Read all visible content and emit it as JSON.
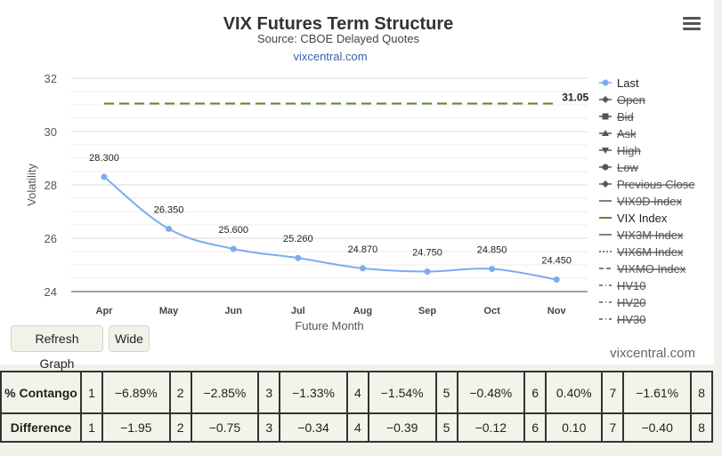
{
  "title": "VIX Futures Term Structure",
  "subtitle": "Source: CBOE Delayed Quotes",
  "link": "vixcentral.com",
  "brand": "vixcentral.com",
  "buttons": {
    "refresh": "Refresh Graph",
    "wide": "Wide"
  },
  "menu_icon": "hamburger-menu-icon",
  "colors": {
    "last": "#7cabf2",
    "vix_index": "#5a8a2a",
    "legend_inactive": "#555555"
  },
  "chart_data": {
    "type": "line",
    "xlabel": "Future Month",
    "ylabel": "Volatility",
    "ylim": [
      24,
      32
    ],
    "yticks": [
      24,
      26,
      28,
      30,
      32
    ],
    "categories": [
      "Apr",
      "May",
      "Jun",
      "Jul",
      "Aug",
      "Sep",
      "Oct",
      "Nov"
    ],
    "series": [
      {
        "name": "Last",
        "values": [
          28.3,
          26.35,
          25.6,
          25.26,
          24.87,
          24.75,
          24.85,
          24.45
        ],
        "labels": [
          "28.300",
          "26.350",
          "25.600",
          "25.260",
          "24.870",
          "24.750",
          "24.850",
          "24.450"
        ]
      },
      {
        "name": "VIX Index",
        "value": 31.05,
        "label": "31.05"
      }
    ],
    "legend": [
      {
        "label": "Last",
        "active": true,
        "marker": "circle-line"
      },
      {
        "label": "Open",
        "active": false,
        "marker": "diamond-line"
      },
      {
        "label": "Bid",
        "active": false,
        "marker": "square-line"
      },
      {
        "label": "Ask",
        "active": false,
        "marker": "triangle-line"
      },
      {
        "label": "High",
        "active": false,
        "marker": "triangle-down-line"
      },
      {
        "label": "Low",
        "active": false,
        "marker": "circle-line"
      },
      {
        "label": "Previous Close",
        "active": false,
        "marker": "diamond-line"
      },
      {
        "label": "VIX9D Index",
        "active": false,
        "marker": "solid"
      },
      {
        "label": "VIX Index",
        "active": true,
        "marker": "solid"
      },
      {
        "label": "VIX3M Index",
        "active": false,
        "marker": "solid"
      },
      {
        "label": "VIX6M Index",
        "active": false,
        "marker": "dotted"
      },
      {
        "label": "VIXMO Index",
        "active": false,
        "marker": "dashed"
      },
      {
        "label": "HV10",
        "active": false,
        "marker": "dashdot"
      },
      {
        "label": "HV20",
        "active": false,
        "marker": "dashdot"
      },
      {
        "label": "HV30",
        "active": false,
        "marker": "dashdot"
      }
    ]
  },
  "table": {
    "contango_label": "% Contango",
    "contango": [
      {
        "n": "1",
        "v": "−6.89%"
      },
      {
        "n": "2",
        "v": "−2.85%"
      },
      {
        "n": "3",
        "v": "−1.33%"
      },
      {
        "n": "4",
        "v": "−1.54%"
      },
      {
        "n": "5",
        "v": "−0.48%"
      },
      {
        "n": "6",
        "v": "0.40%"
      },
      {
        "n": "7",
        "v": "−1.61%"
      },
      {
        "n": "8",
        "v": ""
      }
    ],
    "difference_label": "Difference",
    "difference": [
      {
        "n": "1",
        "v": "−1.95"
      },
      {
        "n": "2",
        "v": "−0.75"
      },
      {
        "n": "3",
        "v": "−0.34"
      },
      {
        "n": "4",
        "v": "−0.39"
      },
      {
        "n": "5",
        "v": "−0.12"
      },
      {
        "n": "6",
        "v": "0.10"
      },
      {
        "n": "7",
        "v": "−0.40"
      },
      {
        "n": "8",
        "v": ""
      }
    ]
  }
}
